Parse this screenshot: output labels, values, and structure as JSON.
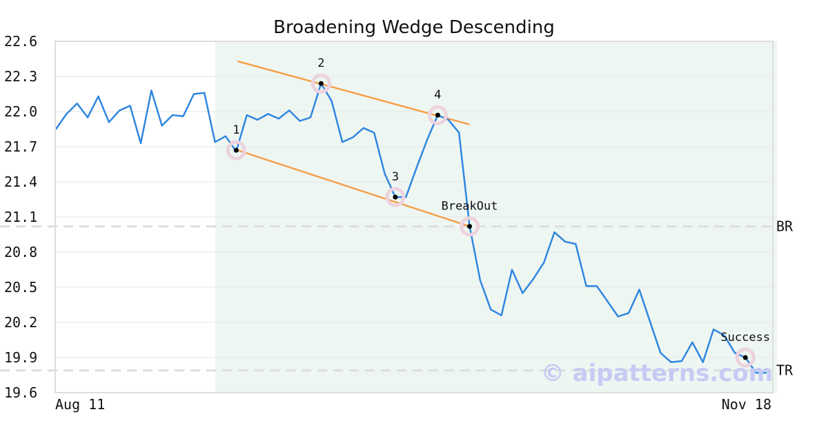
{
  "chart_data": {
    "type": "line",
    "title": "Broadening Wedge Descending",
    "ylim": [
      19.6,
      22.6
    ],
    "yticks": [
      "22.6",
      "22.3",
      "22.0",
      "21.7",
      "21.4",
      "21.1",
      "20.8",
      "20.5",
      "20.2",
      "19.9",
      "19.6"
    ],
    "xtick_labels": [
      "Aug 11",
      "Nov 18"
    ],
    "grid": true,
    "colors": {
      "line": "#2f86e0",
      "trendline": "#f5a04a",
      "pattern_bg": "#eef6f2",
      "refline": "#dddddd",
      "marker_halo": "#ecd3de"
    },
    "series": [
      {
        "values": [
          21.85,
          21.98,
          22.07,
          21.95,
          22.13,
          21.91,
          22.01,
          22.05,
          21.73,
          22.18,
          21.88,
          21.97,
          21.96,
          22.15,
          22.16,
          21.74,
          21.79,
          21.66,
          21.97,
          21.93,
          21.98,
          21.94,
          22.01,
          21.92,
          21.95,
          22.24,
          22.09,
          21.74,
          21.78,
          21.86,
          21.82,
          21.47,
          21.27,
          21.27,
          21.52,
          21.76,
          21.97,
          21.93,
          21.82,
          21.02,
          20.56,
          20.31,
          20.26,
          20.65,
          20.45,
          20.57,
          20.71,
          20.97,
          20.89,
          20.87,
          20.51,
          20.51,
          20.38,
          20.25,
          20.28,
          20.48,
          20.21,
          19.94,
          19.86,
          19.87,
          20.03,
          19.86,
          20.14,
          20.09,
          19.94,
          19.9,
          19.77,
          19.77
        ]
      }
    ],
    "pattern_region": {
      "start_index": 15,
      "end_index": 67
    },
    "trendlines": [
      {
        "from": [
          17,
          21.67
        ],
        "to": [
          39,
          21.02
        ]
      },
      {
        "from": [
          17,
          22.43
        ],
        "to": [
          39,
          21.89
        ]
      }
    ],
    "annotations": [
      {
        "label": "1",
        "x": 17,
        "y": 21.67
      },
      {
        "label": "2",
        "x": 25,
        "y": 22.24
      },
      {
        "label": "3",
        "x": 32,
        "y": 21.27
      },
      {
        "label": "4",
        "x": 36,
        "y": 21.97
      },
      {
        "label": "BreakOut",
        "x": 39,
        "y": 21.02
      },
      {
        "label": "Success",
        "x": 65,
        "y": 19.9
      }
    ],
    "reference_lines": [
      {
        "label": "BR",
        "y": 21.02
      },
      {
        "label": "TR",
        "y": 19.79
      }
    ],
    "watermark": "© aipatterns.com"
  }
}
